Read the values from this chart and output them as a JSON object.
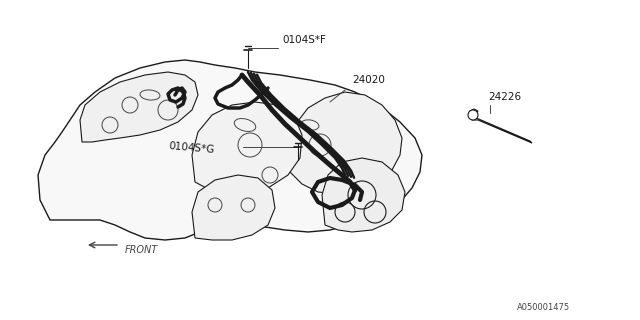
{
  "bg_color": "#ffffff",
  "lc": "#1a1a1a",
  "tlc": "#444444",
  "labels": {
    "part1": "0104S*F",
    "part2": "24020",
    "part3": "0104S*G",
    "part4": "24226",
    "front": "FRONT",
    "doc_num": "A050001475"
  },
  "figsize": [
    6.4,
    3.2
  ],
  "dpi": 100,
  "xlim": [
    0,
    640
  ],
  "ylim": [
    0,
    320
  ]
}
